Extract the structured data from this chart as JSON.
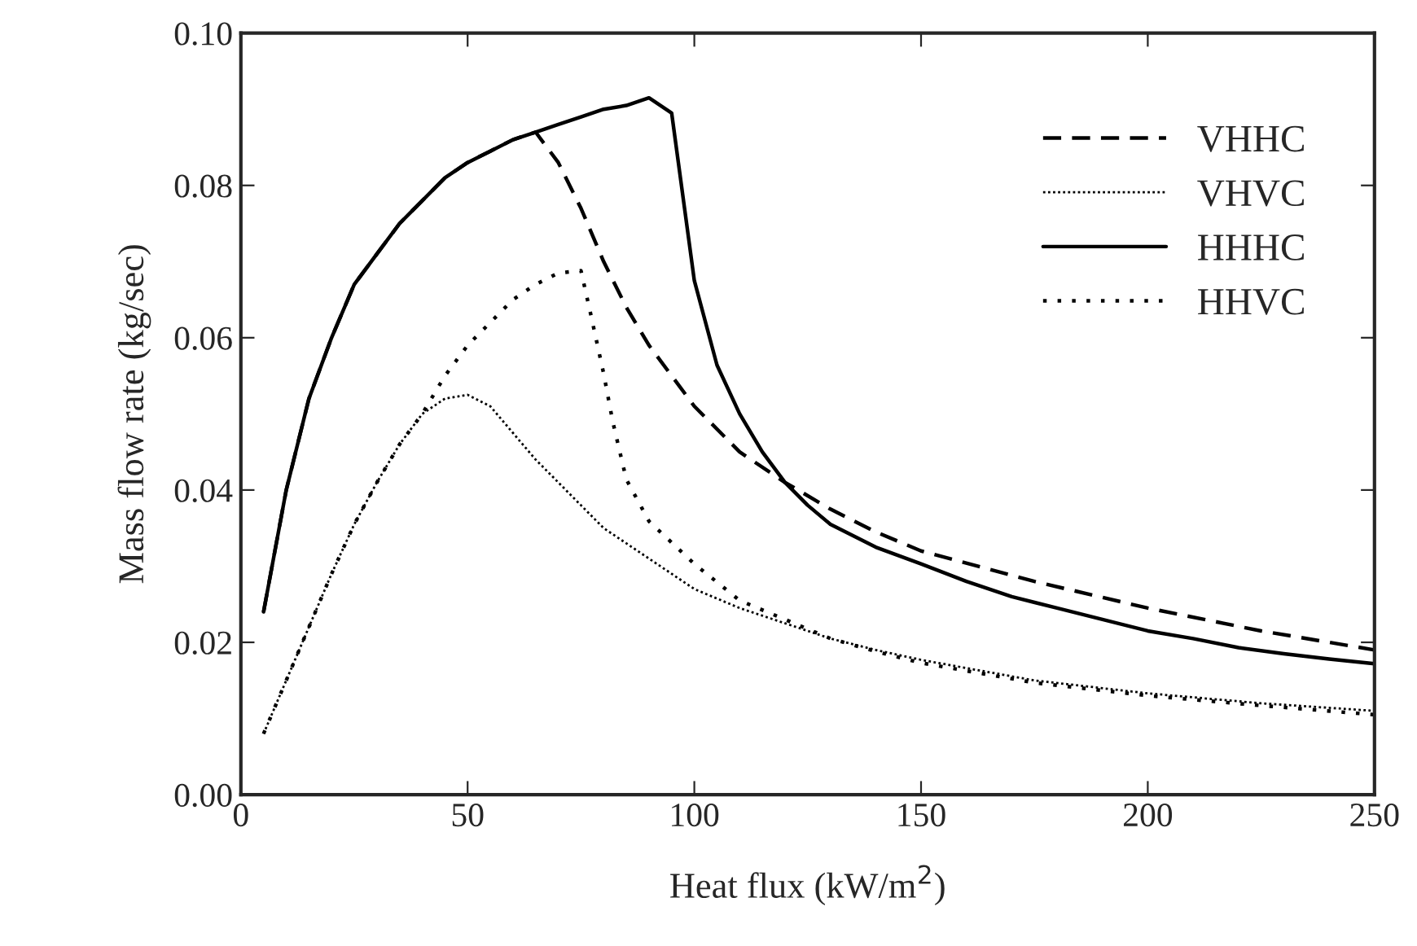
{
  "chart_data": {
    "type": "line",
    "xlabel": "Heat flux (kW/m$^{2}$)",
    "ylabel": "Mass flow rate (kg/sec)",
    "xlim": [
      0,
      250
    ],
    "xticks": [
      0,
      50,
      100,
      150,
      200,
      250
    ],
    "ylim": [
      0,
      0.1
    ],
    "yticks": [
      {
        "value": 0,
        "label": "0.00"
      },
      {
        "value": 0.02,
        "label": "0.02"
      },
      {
        "value": 0.04,
        "label": "0.04"
      },
      {
        "value": 0.06,
        "label": "0.06"
      },
      {
        "value": 0.08,
        "label": "0.08"
      },
      {
        "value": 0.1,
        "label": "0.10"
      }
    ],
    "grid": false,
    "legend": "right",
    "marker": "none",
    "series": [
      {
        "name": "VHHC",
        "color": "#000000",
        "line_style": "dashed",
        "x": [
          5,
          10,
          15,
          20,
          25,
          30,
          35,
          40,
          45,
          50,
          55,
          60,
          65,
          70,
          75,
          80,
          85,
          90,
          95,
          100,
          110,
          120,
          130,
          140,
          150,
          175,
          200,
          225,
          250
        ],
        "values": [
          0.024,
          0.04,
          0.052,
          0.06,
          0.067,
          0.071,
          0.075,
          0.078,
          0.081,
          0.083,
          0.0845,
          0.086,
          0.087,
          0.083,
          0.077,
          0.07,
          0.064,
          0.059,
          0.055,
          0.051,
          0.045,
          0.041,
          0.0375,
          0.0345,
          0.032,
          0.028,
          0.0245,
          0.0215,
          0.019
        ]
      },
      {
        "name": "VHVC",
        "color": "#000000",
        "line_style": "dotted",
        "x": [
          5,
          10,
          15,
          20,
          25,
          30,
          35,
          40,
          45,
          50,
          55,
          60,
          65,
          70,
          75,
          80,
          90,
          100,
          110,
          120,
          130,
          140,
          150,
          175,
          200,
          225,
          250
        ],
        "values": [
          0.008,
          0.015,
          0.022,
          0.029,
          0.0355,
          0.041,
          0.046,
          0.05,
          0.052,
          0.0525,
          0.051,
          0.0475,
          0.044,
          0.041,
          0.038,
          0.035,
          0.031,
          0.027,
          0.0245,
          0.0225,
          0.0205,
          0.019,
          0.0177,
          0.015,
          0.0133,
          0.012,
          0.011
        ]
      },
      {
        "name": "HHHC",
        "color": "#000000",
        "line_style": "solid",
        "x": [
          5,
          10,
          15,
          20,
          25,
          30,
          35,
          40,
          45,
          50,
          55,
          60,
          65,
          70,
          75,
          80,
          85,
          90,
          95,
          100,
          105,
          110,
          115,
          120,
          125,
          130,
          140,
          150,
          160,
          170,
          180,
          190,
          200,
          210,
          220,
          230,
          240,
          250
        ],
        "values": [
          0.024,
          0.04,
          0.052,
          0.06,
          0.067,
          0.071,
          0.075,
          0.078,
          0.081,
          0.083,
          0.0845,
          0.086,
          0.087,
          0.088,
          0.089,
          0.09,
          0.0905,
          0.0915,
          0.0895,
          0.0675,
          0.0564,
          0.05,
          0.045,
          0.041,
          0.038,
          0.0355,
          0.0325,
          0.0303,
          0.028,
          0.026,
          0.0245,
          0.023,
          0.0215,
          0.0205,
          0.0193,
          0.0185,
          0.0178,
          0.0172
        ]
      },
      {
        "name": "HHVC",
        "color": "#000000",
        "line_style": "dotted",
        "x": [
          5,
          10,
          15,
          20,
          25,
          30,
          35,
          40,
          45,
          50,
          55,
          60,
          65,
          70,
          75,
          77,
          80,
          82,
          85,
          90,
          100,
          110,
          120,
          130,
          140,
          150,
          175,
          200,
          225,
          250
        ],
        "values": [
          0.008,
          0.015,
          0.022,
          0.029,
          0.0355,
          0.041,
          0.046,
          0.05,
          0.055,
          0.059,
          0.062,
          0.065,
          0.067,
          0.0685,
          0.0688,
          0.0635,
          0.0553,
          0.049,
          0.0414,
          0.0359,
          0.0303,
          0.0255,
          0.023,
          0.0205,
          0.0188,
          0.0173,
          0.0147,
          0.013,
          0.0117,
          0.0105
        ]
      }
    ]
  }
}
